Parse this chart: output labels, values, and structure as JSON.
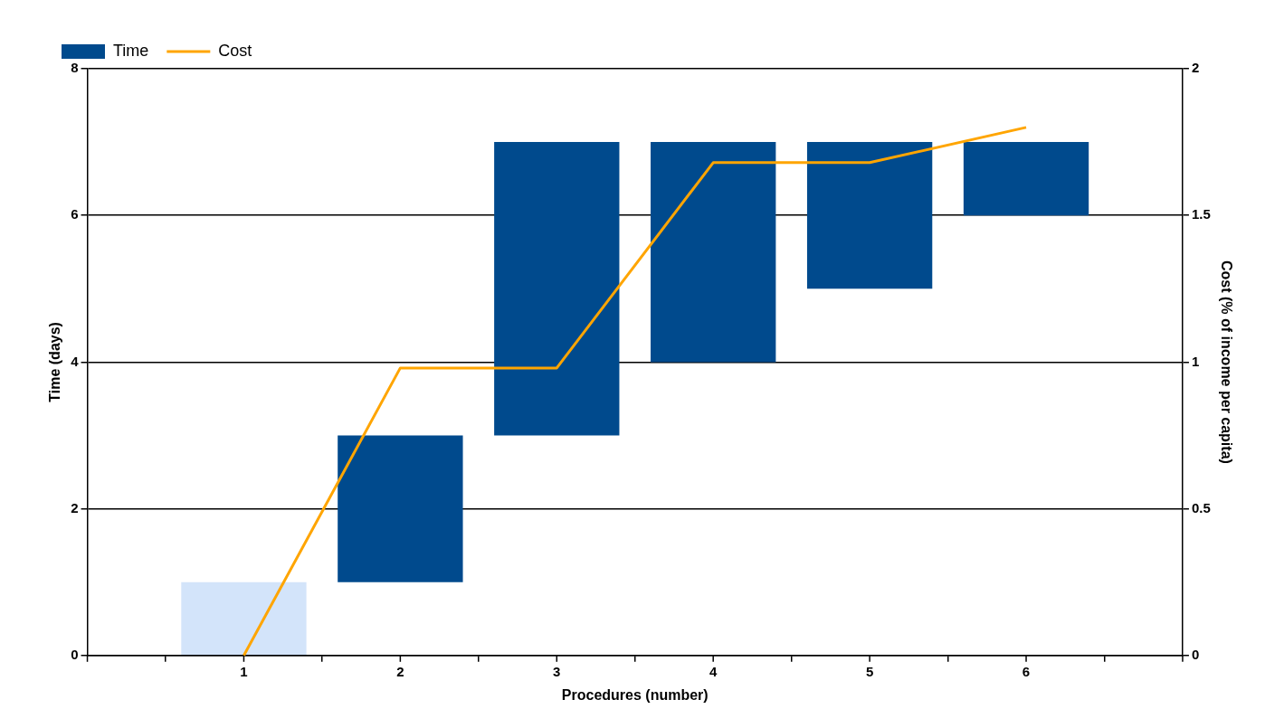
{
  "chart_data": {
    "type": "bar",
    "xlabel": "Procedures (number)",
    "ylabel": "Time (days)",
    "y2label": "Cost (% of income per capita)",
    "x": [
      1,
      2,
      3,
      4,
      5,
      6
    ],
    "xlim": [
      0,
      7
    ],
    "xticks": [
      {
        "value": 0,
        "label": null
      },
      1,
      2,
      3,
      4,
      5,
      6,
      {
        "value": 7,
        "label": null
      }
    ],
    "ylim": [
      0,
      8
    ],
    "yticks": [
      0,
      2,
      4,
      6,
      8
    ],
    "y2lim": [
      0,
      2
    ],
    "y2ticks": [
      0,
      0.5,
      1,
      1.5,
      2
    ],
    "series": [
      {
        "name": "Time",
        "color": "#004a8d",
        "colors": [
          "#d3e4fa",
          "#004a8d",
          "#004a8d",
          "#004a8d",
          "#004a8d",
          "#004a8d"
        ],
        "base": [
          0,
          1,
          3,
          4,
          5,
          6
        ],
        "values": [
          1,
          2,
          4,
          3,
          2,
          1
        ]
      },
      {
        "name": "Cost",
        "type": "line",
        "axis": "y2",
        "color": "#ffa500",
        "values": [
          0,
          0.98,
          0.98,
          1.68,
          1.68,
          1.8
        ]
      }
    ],
    "grid": "y",
    "legend": "top left",
    "marker": "none",
    "line_style": "solid"
  }
}
